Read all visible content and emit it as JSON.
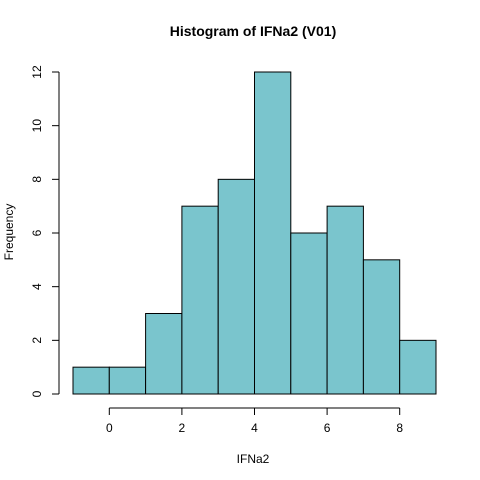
{
  "chart_data": {
    "type": "bar",
    "title": "Histogram of IFNa2 (V01)",
    "xlabel": "IFNa2",
    "ylabel": "Frequency",
    "bin_edges": [
      -1,
      0,
      1,
      2,
      3,
      4,
      5,
      6,
      7,
      8,
      9
    ],
    "values": [
      1,
      1,
      3,
      7,
      8,
      12,
      6,
      7,
      5,
      2
    ],
    "xlim": [
      -1,
      9
    ],
    "ylim": [
      0,
      12
    ],
    "x_ticks": [
      0,
      2,
      4,
      6,
      8
    ],
    "y_ticks": [
      0,
      2,
      4,
      6,
      8,
      10,
      12
    ],
    "bar_color": "#7AC5CD",
    "grid": false
  }
}
